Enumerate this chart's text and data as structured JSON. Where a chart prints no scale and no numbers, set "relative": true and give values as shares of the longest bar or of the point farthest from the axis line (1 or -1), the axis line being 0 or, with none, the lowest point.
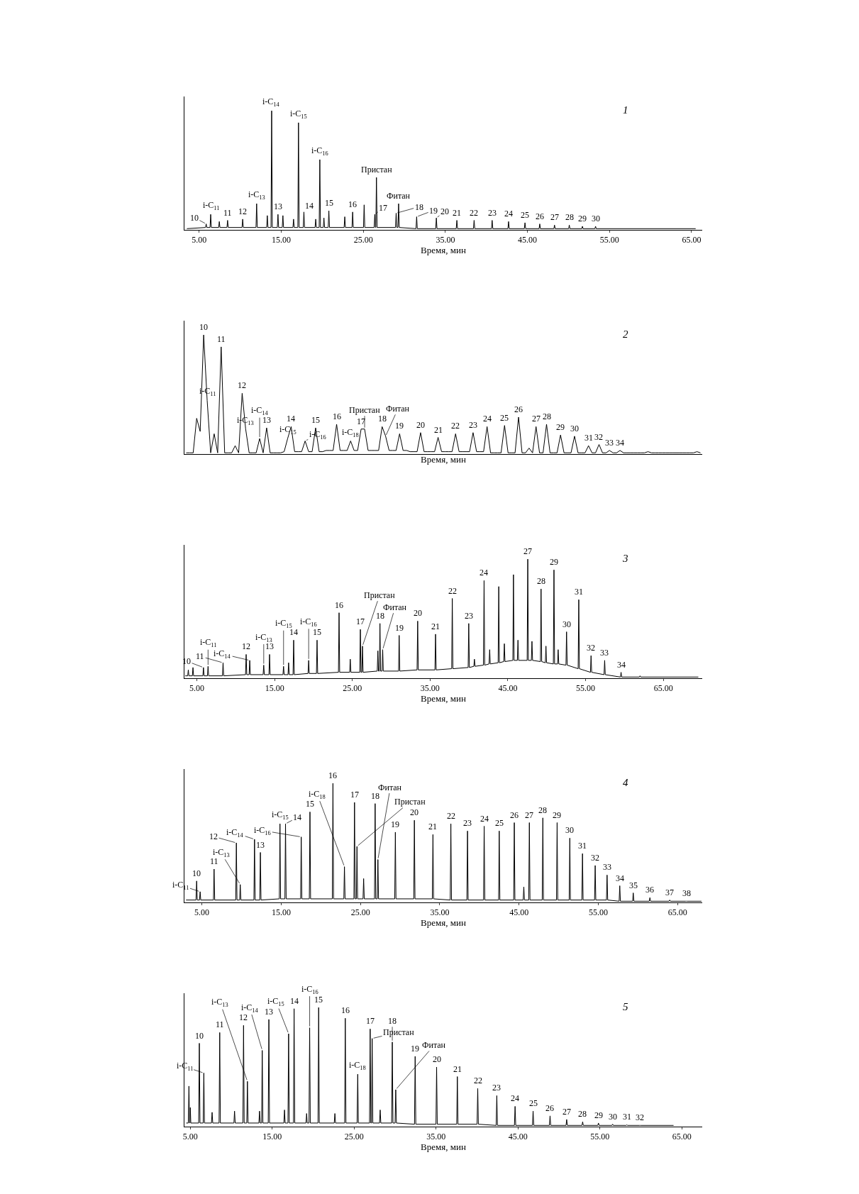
{
  "chart_data": [
    {
      "type": "line",
      "relative": true,
      "xlabel": "Время, мин",
      "xlim": [
        3.2,
        66.3
      ],
      "xticks": [
        {
          "value": 5,
          "label": "5.00"
        },
        {
          "value": 15,
          "label": "15.00"
        },
        {
          "value": 25,
          "label": "25.00"
        },
        {
          "value": 35,
          "label": "35.00"
        },
        {
          "value": 45,
          "label": "45.00"
        },
        {
          "value": 55,
          "label": "55.00"
        },
        {
          "value": 65,
          "label": "65.00"
        }
      ],
      "grid": false,
      "marker": "none",
      "tick_labels": "x",
      "series": [
        {
          "color": "#000000",
          "x": [
            3.5,
            5.77,
            5.85,
            5.93,
            6.32,
            6.4,
            6.48,
            7.37,
            7.45,
            7.53,
            8.38,
            8.46,
            8.54,
            10.22,
            10.3,
            10.38,
            11.92,
            12.0,
            12.08,
            13.22,
            13.3,
            13.38,
            13.75,
            13.83,
            13.91,
            14.52,
            14.6,
            14.68,
            15.12,
            15.2,
            15.28,
            16.42,
            16.5,
            16.58,
            17.02,
            17.1,
            17.18,
            17.68,
            17.76,
            17.84,
            19.12,
            19.2,
            19.28,
            19.62,
            19.7,
            19.78,
            20.12,
            20.2,
            20.28,
            20.72,
            20.8,
            20.88,
            22.66,
            22.74,
            22.82,
            23.62,
            23.7,
            23.78,
            25.02,
            25.1,
            25.18,
            26.32,
            26.4,
            26.48,
            26.52,
            26.6,
            26.68,
            28.92,
            29.0,
            29.08,
            29.22,
            29.3,
            29.38,
            31.42,
            31.5,
            31.58,
            33.82,
            33.9,
            33.98,
            36.32,
            36.4,
            36.48,
            38.42,
            38.5,
            38.58,
            40.62,
            40.7,
            40.78,
            42.62,
            42.7,
            42.78,
            44.62,
            44.7,
            44.78,
            46.42,
            46.5,
            46.58,
            48.22,
            48.3,
            48.38,
            50.02,
            50.1,
            50.18,
            51.62,
            51.7,
            51.78,
            53.22,
            53.3,
            53.38,
            65.5
          ],
          "values": [
            0.01,
            0.02,
            0.05,
            0.02,
            0.02,
            0.13,
            0.02,
            0.02,
            0.07,
            0.02,
            0.02,
            0.08,
            0.02,
            0.02,
            0.09,
            0.02,
            0.02,
            0.22,
            0.02,
            0.02,
            0.12,
            0.02,
            0.02,
            1,
            0.02,
            0.02,
            0.13,
            0.02,
            0.02,
            0.12,
            0.02,
            0.02,
            0.09,
            0.02,
            0.02,
            0.9,
            0.02,
            0.02,
            0.15,
            0.02,
            0.02,
            0.09,
            0.02,
            0.02,
            0.59,
            0.02,
            0.02,
            0.1,
            0.02,
            0.02,
            0.16,
            0.02,
            0.02,
            0.11,
            0.02,
            0.02,
            0.15,
            0.02,
            0.02,
            0.21,
            0.02,
            0.02,
            0.13,
            0.02,
            0.02,
            0.44,
            0.02,
            0.02,
            0.14,
            0.02,
            0.02,
            0.22,
            0.02,
            0.01,
            0.11,
            0.01,
            0.01,
            0.1,
            0.01,
            0.01,
            0.08,
            0.01,
            0.01,
            0.08,
            0.01,
            0.01,
            0.08,
            0.01,
            0.01,
            0.07,
            0.01,
            0.01,
            0.06,
            0.01,
            0.01,
            0.05,
            0.01,
            0.01,
            0.04,
            0.01,
            0.01,
            0.04,
            0.01,
            0.01,
            0.03,
            0.01,
            0.01,
            0.03,
            0.01,
            0.01
          ]
        }
      ],
      "annotations": [
        "1",
        {
          "text": "10",
          "x": 5.85,
          "y": 0.05
        },
        {
          "text": "i-C$_{11}$",
          "x": 6.4,
          "y": 0.13
        },
        {
          "text": "11",
          "x": 8.46,
          "y": 0.08
        },
        {
          "text": "12",
          "x": 10.3,
          "y": 0.09
        },
        {
          "text": "i-C$_{13}$",
          "x": 12.0,
          "y": 0.22
        },
        {
          "text": "i-C$_{14}$",
          "x": 13.83,
          "y": 1
        },
        {
          "text": "13",
          "x": 14.6,
          "y": 0.13
        },
        {
          "text": "i-C$_{15}$",
          "x": 17.1,
          "y": 0.9
        },
        {
          "text": "14",
          "x": 17.76,
          "y": 0.15
        },
        {
          "text": "i-C$_{16}$",
          "x": 19.7,
          "y": 0.59
        },
        {
          "text": "15",
          "x": 20.8,
          "y": 0.16
        },
        {
          "text": "16",
          "x": 23.7,
          "y": 0.15
        },
        {
          "text": "Пристан",
          "x": 26.6,
          "y": 0.44
        },
        {
          "text": "17",
          "x": 26.4,
          "y": 0.13
        },
        {
          "text": "Фитан",
          "x": 29.3,
          "y": 0.22
        },
        {
          "text": "18",
          "x": 29.0,
          "y": 0.14
        },
        {
          "text": "19",
          "x": 31.5,
          "y": 0.11
        },
        {
          "text": "20",
          "x": 33.9,
          "y": 0.1
        },
        {
          "text": "21",
          "x": 36.4,
          "y": 0.08
        },
        {
          "text": "22",
          "x": 38.5,
          "y": 0.08
        },
        {
          "text": "23",
          "x": 40.7,
          "y": 0.08
        },
        {
          "text": "24",
          "x": 42.7,
          "y": 0.07
        },
        {
          "text": "25",
          "x": 44.7,
          "y": 0.06
        },
        {
          "text": "26",
          "x": 46.5,
          "y": 0.05
        },
        {
          "text": "27",
          "x": 48.3,
          "y": 0.04
        },
        {
          "text": "28",
          "x": 50.1,
          "y": 0.04
        },
        {
          "text": "29",
          "x": 51.7,
          "y": 0.03
        },
        {
          "text": "30",
          "x": 53.3,
          "y": 0.03
        }
      ]
    },
    {
      "type": "line",
      "relative": true,
      "xlabel": "Время, мин",
      "grid": false,
      "marker": "none",
      "tick_labels": false,
      "categories": [
        null,
        null,
        null,
        null,
        null,
        null,
        null,
        null,
        null,
        null,
        null,
        null,
        null,
        null,
        null,
        null,
        null,
        null,
        null,
        null,
        null,
        null,
        null,
        null,
        null,
        null,
        null,
        null,
        null,
        null,
        null,
        null,
        null,
        null,
        null,
        null,
        null,
        null,
        null,
        null,
        null,
        null,
        null,
        null,
        null,
        null,
        null,
        null,
        null,
        null,
        null,
        null,
        null,
        null,
        null,
        null,
        null,
        null,
        null,
        null,
        null,
        null,
        null,
        null,
        null,
        null,
        null,
        null,
        null,
        null,
        null,
        null,
        null,
        null,
        null,
        null,
        null,
        null,
        null,
        null,
        null,
        null,
        null,
        null,
        null,
        null,
        null,
        null,
        null,
        null,
        null,
        null,
        null,
        null,
        null,
        null,
        null,
        null,
        null,
        null,
        null,
        null,
        null,
        null,
        null,
        null,
        null,
        null,
        null,
        null,
        null,
        null,
        null,
        null,
        null,
        null,
        null,
        null,
        null,
        null,
        null,
        null,
        null,
        null,
        null,
        null,
        null,
        null,
        null,
        null,
        null,
        null,
        null,
        null,
        null,
        null,
        null,
        null,
        null,
        null,
        null,
        null,
        null,
        null,
        null,
        null,
        null,
        null
      ],
      "series": [
        {
          "color": "#000000",
          "values": [
            0.01,
            0.01,
            0.01,
            0.3,
            0.19,
            1,
            0.45,
            0.01,
            0.17,
            0.01,
            0.9,
            0.01,
            0.01,
            0.01,
            0.07,
            0.01,
            0.51,
            0.21,
            0.01,
            0.01,
            0.01,
            0.13,
            0.01,
            0.22,
            0.01,
            0.01,
            0.01,
            0.01,
            0.02,
            0.13,
            0.23,
            0.02,
            0.02,
            0.02,
            0.11,
            0.02,
            0.02,
            0.22,
            0.02,
            0.02,
            0.03,
            0.03,
            0.03,
            0.25,
            0.03,
            0.03,
            0.03,
            0.11,
            0.03,
            0.03,
            0.21,
            0.21,
            0.03,
            0.03,
            0.03,
            0.03,
            0.23,
            0.15,
            0.03,
            0.03,
            0.03,
            0.17,
            0.03,
            0.03,
            0.02,
            0.02,
            0.02,
            0.18,
            0.02,
            0.02,
            0.02,
            0.02,
            0.14,
            0.02,
            0.02,
            0.02,
            0.02,
            0.17,
            0.02,
            0.02,
            0.02,
            0.02,
            0.18,
            0.02,
            0.02,
            0.02,
            0.23,
            0.01,
            0.01,
            0.01,
            0.01,
            0.24,
            0.01,
            0.01,
            0.01,
            0.31,
            0.01,
            0.01,
            0.05,
            0.01,
            0.23,
            0.01,
            0.01,
            0.25,
            0.01,
            0.01,
            0.01,
            0.16,
            0.01,
            0.01,
            0.01,
            0.15,
            0.01,
            0.01,
            0.01,
            0.07,
            0.01,
            0.01,
            0.08,
            0.01,
            0.01,
            0.03,
            0.01,
            0.01,
            0.03,
            0.01,
            0.01,
            0.01,
            0.01,
            0.01,
            0.01,
            0.01,
            0.02,
            0.01,
            0.01,
            0.01,
            0.01,
            0.01,
            0.01,
            0.01,
            0.01,
            0.01,
            0.01,
            0.01,
            0.01,
            0.01,
            0.02,
            0.01
          ]
        }
      ],
      "annotations": [
        "2",
        {
          "text": "10",
          "y": 1
        },
        {
          "text": "i-C$_{11}$",
          "y": 0.45
        },
        {
          "text": "11",
          "y": 0.9
        },
        {
          "text": "12",
          "y": 0.51
        },
        {
          "text": "i-C$_{13}$",
          "y": 0.21
        },
        {
          "text": "i-C$_{14}$",
          "y": 0.13
        },
        {
          "text": "13",
          "y": 0.22
        },
        {
          "text": "i-C$_{15}$",
          "y": 0.13
        },
        {
          "text": "14",
          "y": 0.23
        },
        {
          "text": "i-C$_{16}$",
          "y": 0.11
        },
        {
          "text": "15",
          "y": 0.22
        },
        {
          "text": "16",
          "y": 0.25
        },
        {
          "text": "i-C$_{18}$",
          "y": 0.11
        },
        {
          "text": "17",
          "y": 0.21
        },
        {
          "text": "Пристан",
          "y": 0.21
        },
        {
          "text": "18",
          "y": 0.23
        },
        {
          "text": "Фитан",
          "y": 0.15
        },
        {
          "text": "19",
          "y": 0.17
        },
        {
          "text": "20",
          "y": 0.18
        },
        {
          "text": "21",
          "y": 0.14
        },
        {
          "text": "22",
          "y": 0.17
        },
        {
          "text": "23",
          "y": 0.18
        },
        {
          "text": "24",
          "y": 0.23
        },
        {
          "text": "25",
          "y": 0.24
        },
        {
          "text": "26",
          "y": 0.31
        },
        {
          "text": "27",
          "y": 0.23
        },
        {
          "text": "28",
          "y": 0.25
        },
        {
          "text": "29",
          "y": 0.16
        },
        {
          "text": "30",
          "y": 0.15
        },
        {
          "text": "31",
          "y": 0.07
        },
        {
          "text": "32",
          "y": 0.08
        },
        {
          "text": "33",
          "y": 0.03
        },
        {
          "text": "34",
          "y": 0.03
        }
      ]
    },
    {
      "type": "line",
      "relative": true,
      "xlabel": "Время, мин",
      "xlim": [
        3.4,
        70.0
      ],
      "xticks": [
        {
          "value": 5,
          "label": "5.00"
        },
        {
          "value": 15,
          "label": "15.00"
        },
        {
          "value": 25,
          "label": "25.00"
        },
        {
          "value": 35,
          "label": "35.00"
        },
        {
          "value": 45,
          "label": "45.00"
        },
        {
          "value": 55,
          "label": "55.00"
        },
        {
          "value": 65,
          "label": "65.00"
        }
      ],
      "grid": false,
      "marker": "none",
      "tick_labels": "x",
      "series": [
        {
          "color": "#000000",
          "x": [
            3.5,
            3.82,
            3.9,
            3.98,
            4.42,
            4.5,
            4.58,
            5.77,
            5.85,
            5.93,
            6.36,
            6.44,
            6.52,
            8.29,
            8.37,
            8.45,
            11.26,
            11.34,
            11.42,
            11.72,
            11.8,
            11.88,
            13.52,
            13.6,
            13.68,
            14.27,
            14.35,
            14.43,
            16.07,
            16.15,
            16.23,
            16.72,
            16.8,
            16.88,
            17.37,
            17.45,
            17.53,
            19.3,
            19.38,
            19.46,
            20.38,
            20.46,
            20.54,
            23.21,
            23.29,
            23.37,
            24.65,
            24.73,
            24.81,
            25.95,
            26.03,
            26.11,
            26.22,
            26.3,
            26.38,
            28.2,
            28.28,
            28.36,
            28.47,
            28.55,
            28.63,
            28.82,
            28.9,
            28.98,
            30.94,
            31.02,
            31.1,
            33.32,
            33.4,
            33.48,
            35.62,
            35.7,
            35.78,
            37.77,
            37.85,
            37.93,
            39.89,
            39.97,
            40.05,
            40.62,
            40.7,
            40.78,
            41.86,
            41.94,
            42.02,
            42.58,
            42.66,
            42.74,
            43.75,
            43.83,
            43.91,
            44.47,
            44.55,
            44.63,
            45.64,
            45.72,
            45.8,
            46.22,
            46.3,
            46.38,
            47.48,
            47.56,
            47.64,
            48.02,
            48.1,
            48.18,
            49.19,
            49.27,
            49.35,
            49.82,
            49.9,
            49.98,
            50.85,
            50.93,
            51.01,
            51.39,
            51.47,
            51.55,
            52.47,
            52.55,
            52.63,
            54.04,
            54.12,
            54.2,
            55.62,
            55.7,
            55.78,
            57.37,
            57.45,
            57.53,
            59.48,
            59.56,
            59.64,
            61.92,
            62.0,
            62.08,
            69.5
          ],
          "values": [
            0.02,
            0.02,
            0.07,
            0.02,
            0.02,
            0.09,
            0.02,
            0.02,
            0.09,
            0.02,
            0.02,
            0.1,
            0.02,
            0.02,
            0.13,
            0.02,
            0.03,
            0.2,
            0.03,
            0.03,
            0.15,
            0.03,
            0.03,
            0.11,
            0.03,
            0.03,
            0.2,
            0.03,
            0.03,
            0.1,
            0.03,
            0.03,
            0.13,
            0.03,
            0.03,
            0.32,
            0.03,
            0.04,
            0.15,
            0.04,
            0.04,
            0.32,
            0.04,
            0.05,
            0.55,
            0.05,
            0.05,
            0.16,
            0.05,
            0.05,
            0.41,
            0.05,
            0.05,
            0.27,
            0.05,
            0.06,
            0.23,
            0.06,
            0.06,
            0.46,
            0.06,
            0.06,
            0.24,
            0.06,
            0.06,
            0.36,
            0.06,
            0.07,
            0.48,
            0.07,
            0.07,
            0.37,
            0.07,
            0.08,
            0.67,
            0.08,
            0.09,
            0.46,
            0.09,
            0.1,
            0.16,
            0.1,
            0.11,
            0.82,
            0.11,
            0.12,
            0.24,
            0.12,
            0.13,
            0.77,
            0.13,
            0.14,
            0.29,
            0.14,
            0.15,
            0.87,
            0.15,
            0.15,
            0.32,
            0.15,
            0.15,
            1,
            0.15,
            0.15,
            0.31,
            0.15,
            0.14,
            0.75,
            0.14,
            0.13,
            0.27,
            0.13,
            0.12,
            0.91,
            0.12,
            0.12,
            0.24,
            0.12,
            0.11,
            0.39,
            0.11,
            0.08,
            0.66,
            0.08,
            0.05,
            0.19,
            0.05,
            0.03,
            0.15,
            0.03,
            0.01,
            0.05,
            0.01,
            0.01,
            0.02,
            0.01,
            0.01
          ]
        }
      ],
      "annotations": [
        "3",
        {
          "text": "10",
          "x": 5.85,
          "y": 0.09
        },
        {
          "text": "i-C$_{11}$",
          "x": 6.44,
          "y": 0.1
        },
        {
          "text": "11",
          "x": 8.37,
          "y": 0.13
        },
        {
          "text": "12",
          "x": 11.34,
          "y": 0.2
        },
        {
          "text": "i-C$_{14}$",
          "x": 11.8,
          "y": 0.15
        },
        {
          "text": "i-C$_{13}$",
          "x": 13.6,
          "y": 0.11
        },
        {
          "text": "13",
          "x": 14.35,
          "y": 0.2
        },
        {
          "text": "i-C$_{15}$",
          "x": 16.15,
          "y": 0.1
        },
        {
          "text": "14",
          "x": 17.45,
          "y": 0.32
        },
        {
          "text": "i-C$_{16}$",
          "x": 19.38,
          "y": 0.15
        },
        {
          "text": "15",
          "x": 20.46,
          "y": 0.32
        },
        {
          "text": "16",
          "x": 23.29,
          "y": 0.55
        },
        {
          "text": "17",
          "x": 26.03,
          "y": 0.41
        },
        {
          "text": "Пристан",
          "x": 26.3,
          "y": 0.27
        },
        {
          "text": "18",
          "x": 28.55,
          "y": 0.46
        },
        {
          "text": "Фитан",
          "x": 28.9,
          "y": 0.24
        },
        {
          "text": "19",
          "x": 31.02,
          "y": 0.36
        },
        {
          "text": "20",
          "x": 33.4,
          "y": 0.48
        },
        {
          "text": "21",
          "x": 35.7,
          "y": 0.37
        },
        {
          "text": "22",
          "x": 37.85,
          "y": 0.67
        },
        {
          "text": "23",
          "x": 39.97,
          "y": 0.46
        },
        {
          "text": "24",
          "x": 41.94,
          "y": 0.82
        },
        {
          "text": "27",
          "x": 47.56,
          "y": 1
        },
        {
          "text": "28",
          "x": 49.27,
          "y": 0.75
        },
        {
          "text": "29",
          "x": 50.93,
          "y": 0.91
        },
        {
          "text": "30",
          "x": 52.55,
          "y": 0.39
        },
        {
          "text": "31",
          "x": 54.12,
          "y": 0.66
        },
        {
          "text": "32",
          "x": 55.7,
          "y": 0.19
        },
        {
          "text": "33",
          "x": 57.45,
          "y": 0.15
        },
        {
          "text": "34",
          "x": 59.56,
          "y": 0.05
        }
      ]
    },
    {
      "type": "line",
      "relative": true,
      "xlabel": "Время, мин",
      "xlim": [
        2.8,
        68.1
      ],
      "xticks": [
        {
          "value": 5,
          "label": "5.00"
        },
        {
          "value": 15,
          "label": "15.00"
        },
        {
          "value": 25,
          "label": "25.00"
        },
        {
          "value": 35,
          "label": "35.00"
        },
        {
          "value": 45,
          "label": "45.00"
        },
        {
          "value": 55,
          "label": "55.00"
        },
        {
          "value": 65,
          "label": "65.00"
        }
      ],
      "grid": false,
      "marker": "none",
      "tick_labels": "x",
      "series": [
        {
          "color": "#000000",
          "x": [
            3.0,
            4.26,
            4.34,
            4.42,
            4.7,
            4.78,
            4.86,
            6.46,
            6.54,
            6.62,
            9.27,
            9.35,
            9.43,
            9.76,
            9.84,
            9.92,
            11.56,
            11.64,
            11.72,
            12.3,
            12.38,
            12.46,
            14.77,
            14.85,
            14.93,
            15.47,
            15.55,
            15.63,
            17.45,
            17.53,
            17.61,
            18.55,
            18.63,
            18.71,
            21.45,
            21.53,
            21.61,
            22.9,
            22.98,
            23.06,
            24.17,
            24.25,
            24.33,
            24.48,
            24.56,
            24.64,
            25.32,
            25.4,
            25.48,
            26.77,
            26.85,
            26.93,
            27.12,
            27.2,
            27.28,
            29.32,
            29.4,
            29.48,
            31.72,
            31.8,
            31.88,
            34.06,
            34.14,
            34.22,
            36.32,
            36.4,
            36.48,
            38.42,
            38.5,
            38.58,
            40.52,
            40.6,
            40.68,
            42.42,
            42.5,
            42.58,
            44.32,
            44.4,
            44.48,
            45.52,
            45.6,
            45.68,
            46.22,
            46.3,
            46.38,
            47.92,
            48.0,
            48.08,
            49.72,
            49.8,
            49.88,
            51.32,
            51.4,
            51.48,
            52.92,
            53.0,
            53.08,
            54.52,
            54.6,
            54.68,
            56.02,
            56.1,
            56.18,
            57.62,
            57.7,
            57.78,
            59.32,
            59.4,
            59.48,
            61.42,
            61.5,
            61.58,
            63.92,
            64.0,
            64.08,
            66.02,
            66.1,
            66.18,
            68.0
          ],
          "values": [
            0.02,
            0.02,
            0.18,
            0.02,
            0.02,
            0.09,
            0.02,
            0.02,
            0.28,
            0.02,
            0.02,
            0.5,
            0.02,
            0.02,
            0.15,
            0.02,
            0.02,
            0.53,
            0.02,
            0.02,
            0.42,
            0.02,
            0.03,
            0.66,
            0.03,
            0.03,
            0.66,
            0.03,
            0.03,
            0.55,
            0.03,
            0.03,
            0.76,
            0.03,
            0.03,
            1,
            0.03,
            0.03,
            0.3,
            0.03,
            0.03,
            0.84,
            0.03,
            0.03,
            0.47,
            0.03,
            0.03,
            0.2,
            0.03,
            0.03,
            0.83,
            0.03,
            0.03,
            0.36,
            0.03,
            0.03,
            0.59,
            0.03,
            0.03,
            0.69,
            0.03,
            0.03,
            0.57,
            0.03,
            0.02,
            0.66,
            0.02,
            0.02,
            0.6,
            0.02,
            0.02,
            0.64,
            0.02,
            0.02,
            0.6,
            0.02,
            0.02,
            0.67,
            0.02,
            0.02,
            0.13,
            0.02,
            0.02,
            0.67,
            0.02,
            0.02,
            0.71,
            0.02,
            0.02,
            0.67,
            0.02,
            0.02,
            0.54,
            0.02,
            0.02,
            0.41,
            0.02,
            0.02,
            0.31,
            0.02,
            0.02,
            0.23,
            0.02,
            0.01,
            0.14,
            0.01,
            0.01,
            0.08,
            0.01,
            0.01,
            0.04,
            0.01,
            0.01,
            0.02,
            0.01,
            0.01,
            0.01,
            0.01,
            0.01
          ]
        }
      ],
      "annotations": [
        "4",
        {
          "text": "10",
          "x": 4.34,
          "y": 0.18
        },
        {
          "text": "i-C$_{11}$",
          "x": 4.78,
          "y": 0.09
        },
        {
          "text": "11",
          "x": 6.54,
          "y": 0.28
        },
        {
          "text": "12",
          "x": 9.35,
          "y": 0.5
        },
        {
          "text": "i-C$_{13}$",
          "x": 9.84,
          "y": 0.15
        },
        {
          "text": "i-C$_{14}$",
          "x": 11.64,
          "y": 0.53
        },
        {
          "text": "13",
          "x": 12.38,
          "y": 0.42
        },
        {
          "text": "i-C$_{15}$",
          "x": 14.85,
          "y": 0.66
        },
        {
          "text": "14",
          "x": 15.55,
          "y": 0.66
        },
        {
          "text": "i-C$_{16}$",
          "x": 17.53,
          "y": 0.55
        },
        {
          "text": "15",
          "x": 18.63,
          "y": 0.76
        },
        {
          "text": "16",
          "x": 21.53,
          "y": 1
        },
        {
          "text": "i-C$_{18}$",
          "x": 22.98,
          "y": 0.3
        },
        {
          "text": "17",
          "x": 24.25,
          "y": 0.84
        },
        {
          "text": "Пристан",
          "x": 24.56,
          "y": 0.47
        },
        {
          "text": "18",
          "x": 26.85,
          "y": 0.83
        },
        {
          "text": "Фитан",
          "x": 27.2,
          "y": 0.36
        },
        {
          "text": "19",
          "x": 29.4,
          "y": 0.59
        },
        {
          "text": "20",
          "x": 31.8,
          "y": 0.69
        },
        {
          "text": "21",
          "x": 34.14,
          "y": 0.57
        },
        {
          "text": "22",
          "x": 36.4,
          "y": 0.66
        },
        {
          "text": "23",
          "x": 38.5,
          "y": 0.6
        },
        {
          "text": "24",
          "x": 40.6,
          "y": 0.64
        },
        {
          "text": "25",
          "x": 42.5,
          "y": 0.6
        },
        {
          "text": "26",
          "x": 44.4,
          "y": 0.67
        },
        {
          "text": "27",
          "x": 46.3,
          "y": 0.67
        },
        {
          "text": "28",
          "x": 48.0,
          "y": 0.71
        },
        {
          "text": "29",
          "x": 49.8,
          "y": 0.67
        },
        {
          "text": "30",
          "x": 51.4,
          "y": 0.54
        },
        {
          "text": "31",
          "x": 53.0,
          "y": 0.41
        },
        {
          "text": "32",
          "x": 54.6,
          "y": 0.31
        },
        {
          "text": "33",
          "x": 56.1,
          "y": 0.23
        },
        {
          "text": "34",
          "x": 57.7,
          "y": 0.14
        },
        {
          "text": "35",
          "x": 59.4,
          "y": 0.08
        },
        {
          "text": "36",
          "x": 61.5,
          "y": 0.04
        },
        {
          "text": "37",
          "x": 64.0,
          "y": 0.02
        },
        {
          "text": "38",
          "x": 66.1,
          "y": 0.01
        }
      ]
    },
    {
      "type": "line",
      "relative": true,
      "xlabel": "Время, мин",
      "xlim": [
        4.28,
        67.5
      ],
      "xticks": [
        {
          "value": 5,
          "label": "5.00"
        },
        {
          "value": 15,
          "label": "15.00"
        },
        {
          "value": 25,
          "label": "25.00"
        },
        {
          "value": 35,
          "label": "35.00"
        },
        {
          "value": 45,
          "label": "45.00"
        },
        {
          "value": 55,
          "label": "55.00"
        },
        {
          "value": 65,
          "label": "65.00"
        }
      ],
      "grid": false,
      "marker": "none",
      "tick_labels": "x",
      "series": [
        {
          "color": "#000000",
          "x": [
            4.5,
            4.75,
            4.83,
            4.91,
            4.94,
            5.0,
            5.06,
            6.02,
            6.1,
            6.18,
            6.57,
            6.65,
            6.73,
            7.58,
            7.66,
            7.74,
            8.51,
            8.59,
            8.67,
            10.32,
            10.4,
            10.48,
            11.42,
            11.5,
            11.58,
            11.89,
            11.97,
            12.05,
            13.37,
            13.45,
            13.53,
            13.7,
            13.78,
            13.86,
            14.51,
            14.59,
            14.67,
            16.42,
            16.5,
            16.58,
            16.92,
            17.0,
            17.08,
            17.59,
            17.67,
            17.75,
            19.12,
            19.2,
            19.28,
            19.49,
            19.57,
            19.65,
            20.59,
            20.67,
            20.75,
            22.57,
            22.65,
            22.73,
            23.84,
            23.92,
            24.0,
            25.36,
            25.44,
            25.52,
            26.88,
            26.96,
            27.04,
            27.12,
            27.2,
            27.28,
            28.1,
            28.18,
            28.26,
            29.58,
            29.66,
            29.74,
            30.0,
            30.08,
            30.16,
            32.37,
            32.45,
            32.53,
            34.99,
            35.07,
            35.15,
            37.52,
            37.6,
            37.68,
            40.01,
            40.09,
            40.17,
            42.34,
            42.42,
            42.5,
            44.57,
            44.65,
            44.73,
            46.77,
            46.85,
            46.93,
            48.84,
            48.92,
            49.0,
            50.87,
            50.95,
            51.03,
            52.82,
            52.9,
            52.98,
            54.75,
            54.83,
            54.91,
            56.48,
            56.56,
            56.64,
            58.22,
            58.3,
            58.38,
            59.82,
            59.9,
            59.98,
            64.0
          ],
          "values": [
            0.03,
            0.03,
            0.34,
            0.03,
            0.03,
            0.16,
            0.03,
            0.03,
            0.7,
            0.03,
            0.03,
            0.45,
            0.03,
            0.03,
            0.12,
            0.03,
            0.03,
            0.79,
            0.03,
            0.03,
            0.13,
            0.03,
            0.03,
            0.85,
            0.03,
            0.03,
            0.38,
            0.03,
            0.03,
            0.13,
            0.03,
            0.03,
            0.64,
            0.03,
            0.03,
            0.9,
            0.03,
            0.03,
            0.14,
            0.03,
            0.03,
            0.78,
            0.03,
            0.03,
            0.99,
            0.03,
            0.03,
            0.11,
            0.03,
            0.03,
            0.83,
            0.03,
            0.03,
            1,
            0.03,
            0.03,
            0.11,
            0.03,
            0.03,
            0.91,
            0.03,
            0.03,
            0.44,
            0.03,
            0.03,
            0.82,
            0.03,
            0.03,
            0.74,
            0.03,
            0.03,
            0.14,
            0.03,
            0.03,
            0.71,
            0.03,
            0.03,
            0.31,
            0.03,
            0.02,
            0.59,
            0.02,
            0.02,
            0.5,
            0.02,
            0.02,
            0.42,
            0.02,
            0.02,
            0.32,
            0.02,
            0.01,
            0.26,
            0.01,
            0.01,
            0.17,
            0.01,
            0.01,
            0.13,
            0.01,
            0.01,
            0.09,
            0.01,
            0.01,
            0.06,
            0.01,
            0.01,
            0.04,
            0.01,
            0.01,
            0.03,
            0.01,
            0.01,
            0.02,
            0.01,
            0.01,
            0.015,
            0.01,
            0.01,
            0.01,
            0.01,
            0.01
          ]
        }
      ],
      "annotations": [
        "5",
        {
          "text": "10",
          "x": 6.1,
          "y": 0.7
        },
        {
          "text": "i-C$_{11}$",
          "x": 6.65,
          "y": 0.45
        },
        {
          "text": "11",
          "x": 8.59,
          "y": 0.79
        },
        {
          "text": "12",
          "x": 11.5,
          "y": 0.85
        },
        {
          "text": "i-C$_{13}$",
          "x": 11.97,
          "y": 0.38
        },
        {
          "text": "i-C$_{14}$",
          "x": 13.78,
          "y": 0.64
        },
        {
          "text": "13",
          "x": 14.59,
          "y": 0.9
        },
        {
          "text": "i-C$_{15}$",
          "x": 17.0,
          "y": 0.78
        },
        {
          "text": "14",
          "x": 17.67,
          "y": 0.99
        },
        {
          "text": "i-C$_{16}$",
          "x": 19.57,
          "y": 0.83
        },
        {
          "text": "15",
          "x": 20.67,
          "y": 1
        },
        {
          "text": "16",
          "x": 23.92,
          "y": 0.91
        },
        {
          "text": "i-C$_{18}$",
          "x": 25.44,
          "y": 0.44
        },
        {
          "text": "17",
          "x": 26.96,
          "y": 0.82
        },
        {
          "text": "Пристан",
          "x": 27.2,
          "y": 0.74
        },
        {
          "text": "18",
          "x": 29.66,
          "y": 0.71
        },
        {
          "text": "Фитан",
          "x": 30.08,
          "y": 0.31
        },
        {
          "text": "19",
          "x": 32.45,
          "y": 0.59
        },
        {
          "text": "20",
          "x": 35.07,
          "y": 0.5
        },
        {
          "text": "21",
          "x": 37.6,
          "y": 0.42
        },
        {
          "text": "22",
          "x": 40.09,
          "y": 0.32
        },
        {
          "text": "23",
          "x": 42.42,
          "y": 0.26
        },
        {
          "text": "24",
          "x": 44.65,
          "y": 0.17
        },
        {
          "text": "25",
          "x": 46.85,
          "y": 0.13
        },
        {
          "text": "26",
          "x": 48.92,
          "y": 0.09
        },
        {
          "text": "27",
          "x": 50.95,
          "y": 0.06
        },
        {
          "text": "28",
          "x": 52.9,
          "y": 0.04
        },
        {
          "text": "29",
          "x": 54.83,
          "y": 0.03
        },
        {
          "text": "30",
          "x": 56.56,
          "y": 0.02
        },
        {
          "text": "31",
          "x": 58.3,
          "y": 0.015
        },
        {
          "text": "32",
          "x": 59.9,
          "y": 0.01
        }
      ]
    }
  ]
}
